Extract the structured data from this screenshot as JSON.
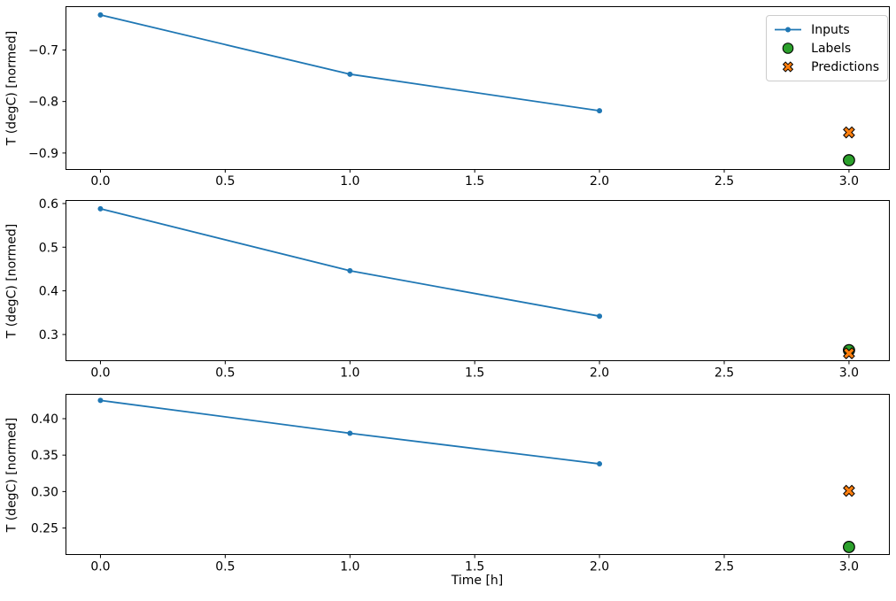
{
  "figure": {
    "xlabel": "Time [h]",
    "ylabel": "T (degC) [normed]"
  },
  "legend": {
    "position": "upper-right",
    "border_color": "#cccccc",
    "items": [
      {
        "label": "Inputs",
        "marker": "line-dot",
        "color": "#1f77b4"
      },
      {
        "label": "Labels",
        "marker": "circle",
        "color": "#2ca02c"
      },
      {
        "label": "Predictions",
        "marker": "x-cross",
        "color": "#ff7f0e"
      }
    ]
  },
  "chart_data": [
    {
      "type": "line",
      "title": "",
      "xlabel": "",
      "ylabel": "T (degC) [normed]",
      "grid": false,
      "xlim": [
        -0.14,
        3.16
      ],
      "ylim": [
        -0.932,
        -0.615
      ],
      "x_ticks": [
        0.0,
        0.5,
        1.0,
        1.5,
        2.0,
        2.5,
        3.0
      ],
      "x_tick_labels": [
        "0.0",
        "0.5",
        "1.0",
        "1.5",
        "2.0",
        "2.5",
        "3.0"
      ],
      "y_ticks": [
        -0.7,
        -0.8,
        -0.9
      ],
      "y_tick_labels": [
        "−0.7",
        "−0.8",
        "−0.9"
      ],
      "series": [
        {
          "name": "Inputs",
          "type": "line",
          "color": "#1f77b4",
          "x": [
            0,
            1,
            2
          ],
          "y": [
            -0.632,
            -0.747,
            -0.818
          ]
        },
        {
          "name": "Labels",
          "type": "scatter-circle",
          "color": "#2ca02c",
          "x": [
            3
          ],
          "y": [
            -0.914
          ]
        },
        {
          "name": "Predictions",
          "type": "scatter-x",
          "color": "#ff7f0e",
          "x": [
            3
          ],
          "y": [
            -0.86
          ]
        }
      ]
    },
    {
      "type": "line",
      "title": "",
      "xlabel": "",
      "ylabel": "T (degC) [normed]",
      "grid": false,
      "xlim": [
        -0.14,
        3.16
      ],
      "ylim": [
        0.239,
        0.608
      ],
      "x_ticks": [
        0.0,
        0.5,
        1.0,
        1.5,
        2.0,
        2.5,
        3.0
      ],
      "x_tick_labels": [
        "0.0",
        "0.5",
        "1.0",
        "1.5",
        "2.0",
        "2.5",
        "3.0"
      ],
      "y_ticks": [
        0.3,
        0.4,
        0.5,
        0.6
      ],
      "y_tick_labels": [
        "0.3",
        "0.4",
        "0.5",
        "0.6"
      ],
      "series": [
        {
          "name": "Inputs",
          "type": "line",
          "color": "#1f77b4",
          "x": [
            0,
            1,
            2
          ],
          "y": [
            0.588,
            0.446,
            0.342
          ]
        },
        {
          "name": "Labels",
          "type": "scatter-circle",
          "color": "#2ca02c",
          "x": [
            3
          ],
          "y": [
            0.264
          ]
        },
        {
          "name": "Predictions",
          "type": "scatter-x",
          "color": "#ff7f0e",
          "x": [
            3
          ],
          "y": [
            0.257
          ]
        }
      ]
    },
    {
      "type": "line",
      "title": "",
      "xlabel": "Time [h]",
      "ylabel": "T (degC) [normed]",
      "grid": false,
      "xlim": [
        -0.14,
        3.16
      ],
      "ylim": [
        0.213,
        0.434
      ],
      "x_ticks": [
        0.0,
        0.5,
        1.0,
        1.5,
        2.0,
        2.5,
        3.0
      ],
      "x_tick_labels": [
        "0.0",
        "0.5",
        "1.0",
        "1.5",
        "2.0",
        "2.5",
        "3.0"
      ],
      "y_ticks": [
        0.25,
        0.3,
        0.35,
        0.4
      ],
      "y_tick_labels": [
        "0.25",
        "0.30",
        "0.35",
        "0.40"
      ],
      "series": [
        {
          "name": "Inputs",
          "type": "line",
          "color": "#1f77b4",
          "x": [
            0,
            1,
            2
          ],
          "y": [
            0.425,
            0.38,
            0.338
          ]
        },
        {
          "name": "Labels",
          "type": "scatter-circle",
          "color": "#2ca02c",
          "x": [
            3
          ],
          "y": [
            0.224
          ]
        },
        {
          "name": "Predictions",
          "type": "scatter-x",
          "color": "#ff7f0e",
          "x": [
            3
          ],
          "y": [
            0.301
          ]
        }
      ]
    }
  ]
}
